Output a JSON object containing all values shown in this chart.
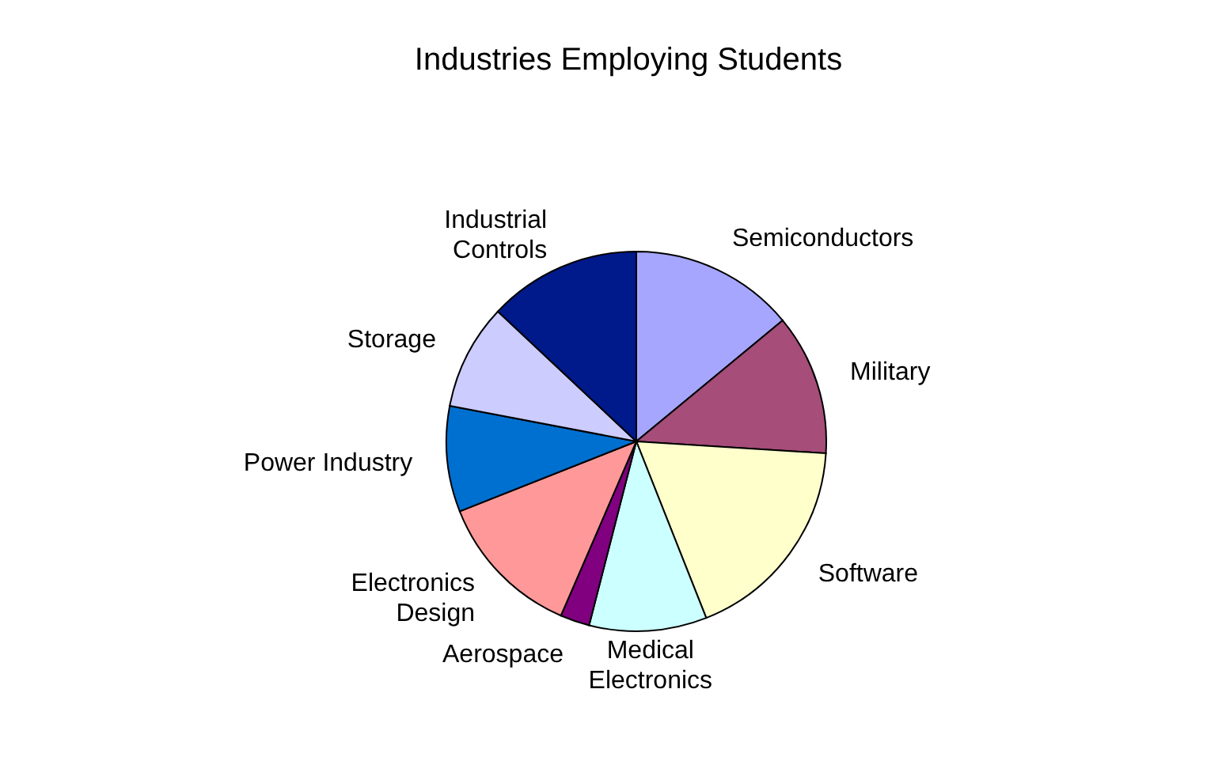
{
  "chart_data": {
    "type": "pie",
    "title": "Industries Employing Students",
    "categories": [
      "Semiconductors",
      "Military",
      "Software",
      "Medical Electronics",
      "Aerospace",
      "Electronics Design",
      "Power Industry",
      "Storage",
      "Industrial Controls"
    ],
    "values": [
      14,
      12,
      18,
      10,
      2.5,
      12.5,
      9,
      9,
      13
    ],
    "colors": [
      "#a6a6ff",
      "#a64d79",
      "#ffffcc",
      "#ccffff",
      "#800080",
      "#ff9999",
      "#0070d0",
      "#ccccff",
      "#001a8c"
    ],
    "legend": false
  }
}
